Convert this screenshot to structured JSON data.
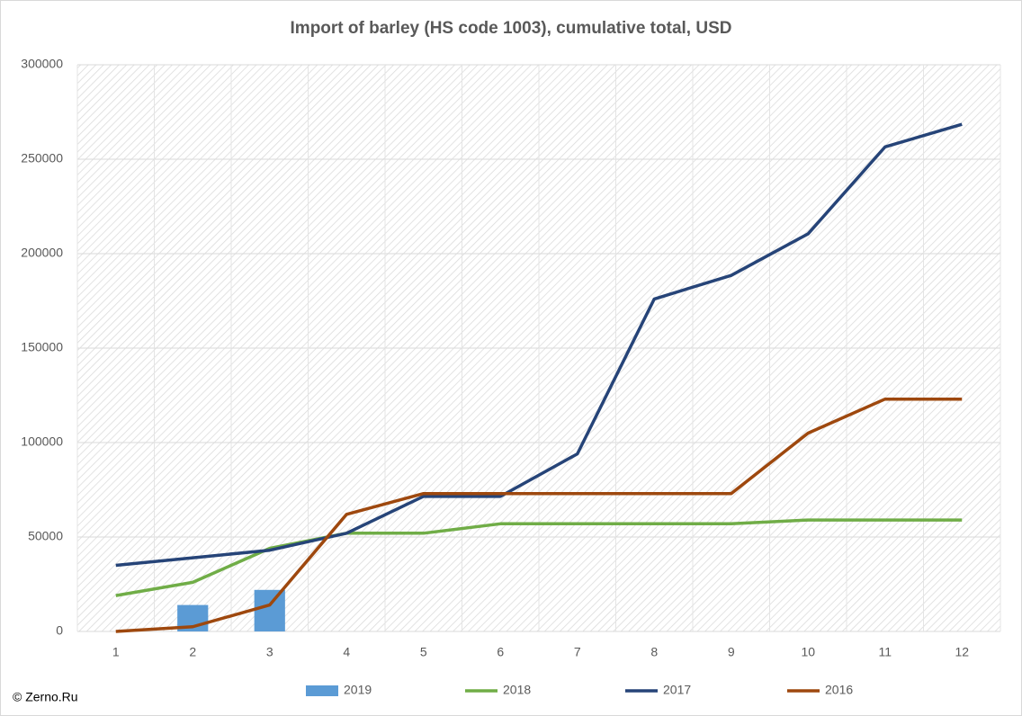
{
  "chart_data": {
    "type": "combo",
    "title": "Import of barley (HS code 1003), cumulative total, USD",
    "categories": [
      "1",
      "2",
      "3",
      "4",
      "5",
      "6",
      "7",
      "8",
      "9",
      "10",
      "11",
      "12"
    ],
    "series": [
      {
        "name": "2019",
        "type": "bar",
        "color": "#5b9bd5",
        "values": [
          null,
          14000,
          22000,
          null,
          null,
          null,
          null,
          null,
          null,
          null,
          null,
          null
        ]
      },
      {
        "name": "2018",
        "type": "line",
        "color": "#70ad47",
        "values": [
          19000,
          26000,
          44000,
          52000,
          52000,
          57000,
          57000,
          57000,
          57000,
          59000,
          59000,
          59000
        ]
      },
      {
        "name": "2017",
        "type": "line",
        "color": "#264478",
        "values": [
          35000,
          39000,
          43000,
          52000,
          71500,
          71500,
          94000,
          176000,
          188500,
          210500,
          256500,
          268500
        ]
      },
      {
        "name": "2016",
        "type": "line",
        "color": "#9e480e",
        "values": [
          0,
          2500,
          14000,
          62000,
          73000,
          73000,
          73000,
          73000,
          73000,
          105000,
          123000,
          123000
        ]
      }
    ],
    "ylim": [
      0,
      300000
    ],
    "yticks": [
      0,
      50000,
      100000,
      150000,
      200000,
      250000,
      300000
    ],
    "grid": true,
    "legend": "bottom",
    "source": "© Zerno.Ru"
  }
}
